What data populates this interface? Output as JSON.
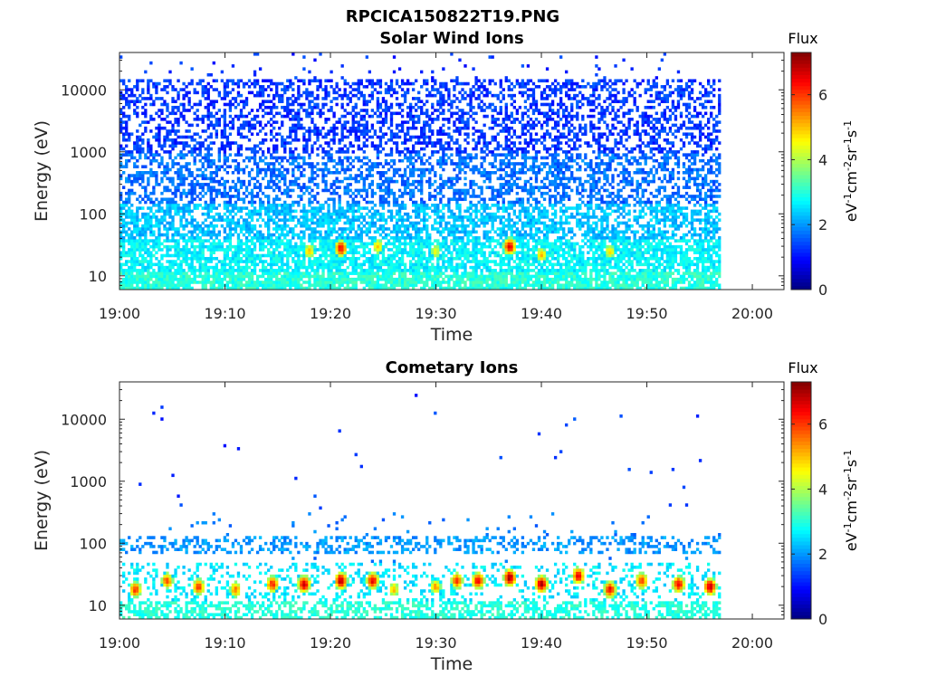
{
  "figure": {
    "title": "RPCICA150822T19.PNG"
  },
  "colormap": [
    "#00007f",
    "#0000ff",
    "#007fff",
    "#00ffff",
    "#7fff7f",
    "#ffff00",
    "#ff7f00",
    "#ff0000",
    "#7f0000"
  ],
  "chart_data": [
    {
      "type": "heatmap",
      "title": "Solar Wind Ions",
      "xlabel": "Time",
      "ylabel": "Energy (eV)",
      "x_ticks": [
        "19:00",
        "19:10",
        "19:20",
        "19:30",
        "19:40",
        "19:50",
        "20:00"
      ],
      "x_range": [
        "19:00",
        "20:03"
      ],
      "data_end": "19:57",
      "y_scale": "log",
      "y_ticks": [
        "10",
        "100",
        "1000",
        "10000"
      ],
      "y_range": [
        6,
        40000
      ],
      "colorbar": {
        "title": "Flux",
        "label": "eV-1cm-2sr-1s-1",
        "ticks": [
          "0",
          "2",
          "4",
          "6"
        ],
        "range": [
          0,
          7.3
        ]
      },
      "pattern": "dense",
      "hot_spots": [
        {
          "t": 18.0,
          "e": 25,
          "v": 5.0
        },
        {
          "t": 21.0,
          "e": 28,
          "v": 6.5
        },
        {
          "t": 24.5,
          "e": 30,
          "v": 5.0
        },
        {
          "t": 30.0,
          "e": 25,
          "v": 4.5
        },
        {
          "t": 37.0,
          "e": 30,
          "v": 6.6
        },
        {
          "t": 40.0,
          "e": 22,
          "v": 5.0
        },
        {
          "t": 46.5,
          "e": 25,
          "v": 4.8
        }
      ]
    },
    {
      "type": "heatmap",
      "title": "Cometary Ions",
      "xlabel": "Time",
      "ylabel": "Energy (eV)",
      "x_ticks": [
        "19:00",
        "19:10",
        "19:20",
        "19:30",
        "19:40",
        "19:50",
        "20:00"
      ],
      "x_range": [
        "19:00",
        "20:03"
      ],
      "data_end": "19:57",
      "y_scale": "log",
      "y_ticks": [
        "10",
        "100",
        "1000",
        "10000"
      ],
      "y_range": [
        6,
        40000
      ],
      "colorbar": {
        "title": "Flux",
        "label": "eV-1cm-2sr-1s-1",
        "ticks": [
          "0",
          "2",
          "4",
          "6"
        ],
        "range": [
          0,
          7.3
        ]
      },
      "pattern": "sparse",
      "hot_spots": [
        {
          "t": 1.5,
          "e": 18,
          "v": 6.0
        },
        {
          "t": 4.5,
          "e": 25,
          "v": 5.8
        },
        {
          "t": 7.5,
          "e": 20,
          "v": 6.0
        },
        {
          "t": 11.0,
          "e": 18,
          "v": 5.5
        },
        {
          "t": 14.5,
          "e": 22,
          "v": 6.2
        },
        {
          "t": 17.5,
          "e": 22,
          "v": 6.8
        },
        {
          "t": 21.0,
          "e": 25,
          "v": 7.0
        },
        {
          "t": 24.0,
          "e": 25,
          "v": 6.5
        },
        {
          "t": 26.0,
          "e": 18,
          "v": 5.0
        },
        {
          "t": 30.0,
          "e": 20,
          "v": 5.2
        },
        {
          "t": 32.0,
          "e": 25,
          "v": 6.0
        },
        {
          "t": 34.0,
          "e": 25,
          "v": 6.5
        },
        {
          "t": 37.0,
          "e": 28,
          "v": 7.0
        },
        {
          "t": 40.0,
          "e": 22,
          "v": 7.0
        },
        {
          "t": 43.5,
          "e": 30,
          "v": 6.5
        },
        {
          "t": 46.5,
          "e": 18,
          "v": 6.5
        },
        {
          "t": 49.5,
          "e": 25,
          "v": 6.0
        },
        {
          "t": 53.0,
          "e": 22,
          "v": 6.5
        },
        {
          "t": 56.0,
          "e": 20,
          "v": 6.8
        }
      ]
    }
  ]
}
